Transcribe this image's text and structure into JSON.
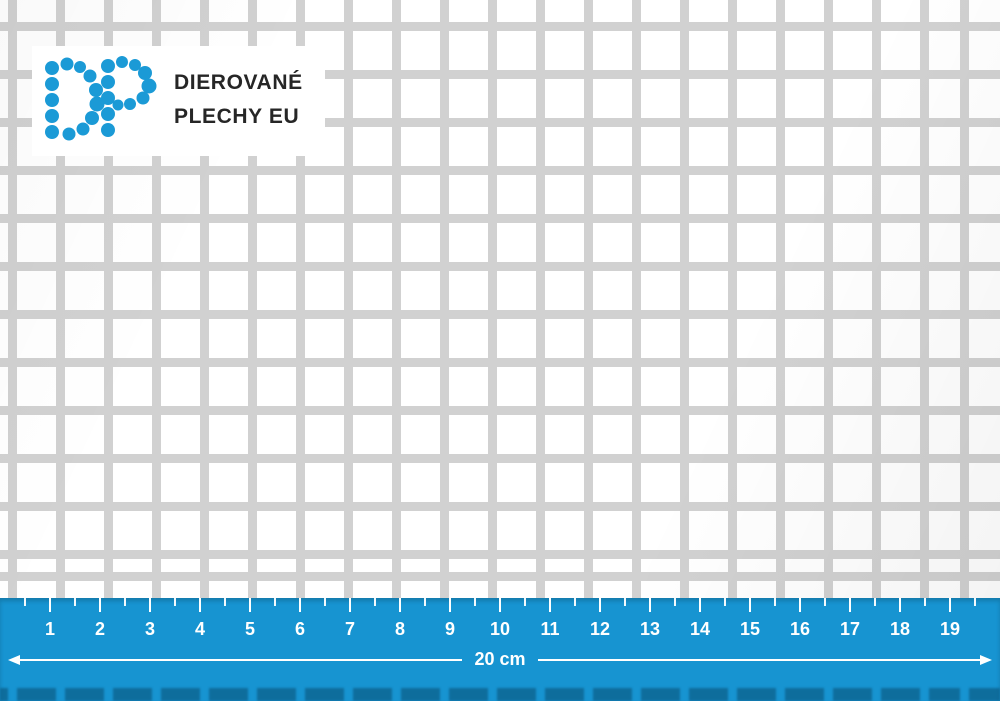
{
  "logo": {
    "line1": "DIEROVANÉ",
    "line2": "PLECHY EU",
    "dot_color": "#1b9ad6",
    "text_color": "#262626"
  },
  "sheet": {
    "metal_color": "#d1d1d1",
    "hole_color": "#ffffff",
    "hole_shape": "square"
  },
  "ruler": {
    "background_color": "#1794d1",
    "text_color": "#ffffff",
    "numbers": [
      1,
      2,
      3,
      4,
      5,
      6,
      7,
      8,
      9,
      10,
      11,
      12,
      13,
      14,
      15,
      16,
      17,
      18,
      19
    ],
    "length_label": "20 cm"
  }
}
